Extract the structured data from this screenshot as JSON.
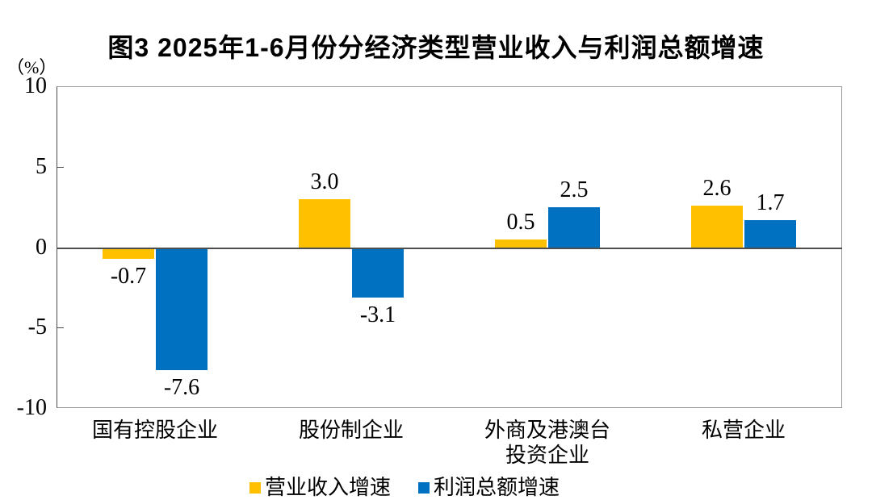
{
  "page": {
    "background": "#FFFFFF",
    "text_color": "#000000"
  },
  "chart_data": {
    "type": "bar",
    "title": "图3 2025年1-6月份分经济类型营业收入与利润总额增速",
    "unit_label": "（%）",
    "categories": [
      "国有控股企业",
      "股份制企业",
      "外商及港澳台\n投资企业",
      "私营企业"
    ],
    "series": [
      {
        "name": "营业收入增速",
        "color": "#FFC000",
        "values": [
          -0.7,
          3.0,
          0.5,
          2.6
        ],
        "labels": [
          "-0.7",
          "3.0",
          "0.5",
          "2.6"
        ]
      },
      {
        "name": "利润总额增速",
        "color": "#0070C0",
        "values": [
          -7.6,
          -3.1,
          2.5,
          1.7
        ],
        "labels": [
          "-7.6",
          "-3.1",
          "2.5",
          "1.7"
        ]
      }
    ],
    "ylim": [
      -10,
      10
    ],
    "ytick_values": [
      10,
      5,
      0,
      -5,
      -10
    ],
    "ytick_labels": [
      "10",
      "5",
      "0",
      "-5",
      "-10"
    ],
    "grid": false,
    "legend_position": "bottom",
    "axis_color": "#4D4D4D",
    "plot_border_color": "#999999"
  }
}
